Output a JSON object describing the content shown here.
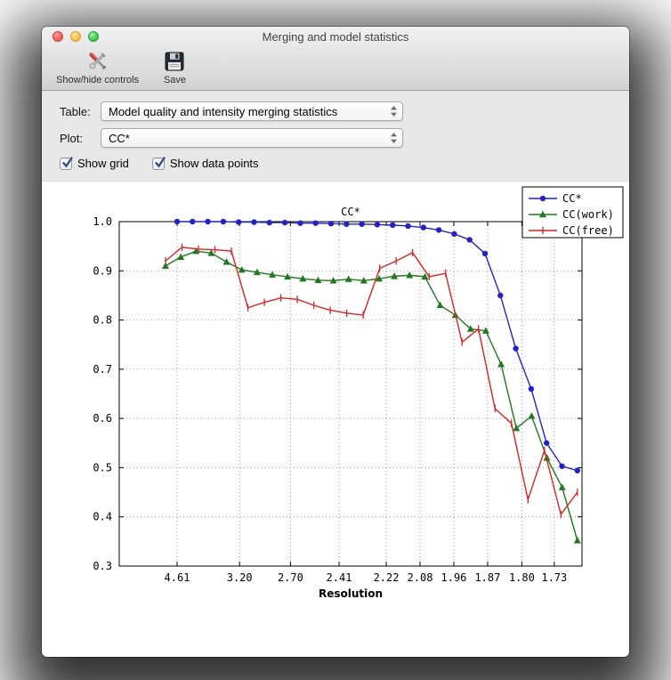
{
  "window": {
    "title": "Merging and model statistics"
  },
  "toolbar": {
    "buttons": [
      {
        "id": "show-hide-controls",
        "label": "Show/hide controls",
        "icon": "tools-icon"
      },
      {
        "id": "save",
        "label": "Save",
        "icon": "save-icon"
      }
    ]
  },
  "controls": {
    "table_label": "Table:",
    "table_value": "Model quality and intensity merging statistics",
    "plot_label": "Plot:",
    "plot_value": "CC*",
    "checkboxes": [
      {
        "label": "Show grid",
        "checked": true
      },
      {
        "label": "Show data points",
        "checked": true
      }
    ]
  },
  "chart_data": {
    "type": "line",
    "title": "CC*",
    "xlabel": "Resolution",
    "ylabel": "",
    "ylim": [
      0.3,
      1.0
    ],
    "yticks": [
      1.0,
      0.9,
      0.8,
      0.7,
      0.6,
      0.5,
      0.4,
      0.3
    ],
    "xticks": [
      {
        "label": "4.61",
        "pos": 0.125
      },
      {
        "label": "3.20",
        "pos": 0.26
      },
      {
        "label": "2.70",
        "pos": 0.37
      },
      {
        "label": "2.41",
        "pos": 0.475
      },
      {
        "label": "2.22",
        "pos": 0.577
      },
      {
        "label": "2.08",
        "pos": 0.65
      },
      {
        "label": "1.96",
        "pos": 0.723
      },
      {
        "label": "1.87",
        "pos": 0.796
      },
      {
        "label": "1.80",
        "pos": 0.87
      },
      {
        "label": "1.73",
        "pos": 0.94
      }
    ],
    "grid": true,
    "show_data_points": true,
    "legend_position": "upper right",
    "series": [
      {
        "name": "CC*",
        "color": "#2222cc",
        "marker": "circle",
        "x_start": 0.125,
        "x_end": 0.99,
        "values": [
          1.0,
          1.0,
          1.0,
          1.0,
          0.999,
          0.999,
          0.998,
          0.998,
          0.997,
          0.997,
          0.996,
          0.995,
          0.995,
          0.994,
          0.993,
          0.991,
          0.988,
          0.983,
          0.975,
          0.963,
          0.935,
          0.85,
          0.742,
          0.66,
          0.55,
          0.503,
          0.494
        ]
      },
      {
        "name": "CC(work)",
        "color": "#1f7a1f",
        "marker": "triangle",
        "x_start": 0.1,
        "x_end": 0.99,
        "values": [
          0.91,
          0.928,
          0.94,
          0.936,
          0.918,
          0.902,
          0.897,
          0.892,
          0.888,
          0.884,
          0.881,
          0.88,
          0.883,
          0.88,
          0.884,
          0.889,
          0.891,
          0.888,
          0.83,
          0.81,
          0.782,
          0.778,
          0.71,
          0.58,
          0.605,
          0.52,
          0.46,
          0.352
        ]
      },
      {
        "name": "CC(free)",
        "color": "#dd2222",
        "marker": "vline",
        "x_start": 0.1,
        "x_end": 0.99,
        "values": [
          0.92,
          0.948,
          0.944,
          0.943,
          0.94,
          0.825,
          0.836,
          0.845,
          0.842,
          0.83,
          0.82,
          0.814,
          0.81,
          0.905,
          0.92,
          0.937,
          0.888,
          0.895,
          0.755,
          0.782,
          0.62,
          0.59,
          0.435,
          0.535,
          0.405,
          0.45
        ]
      }
    ]
  }
}
